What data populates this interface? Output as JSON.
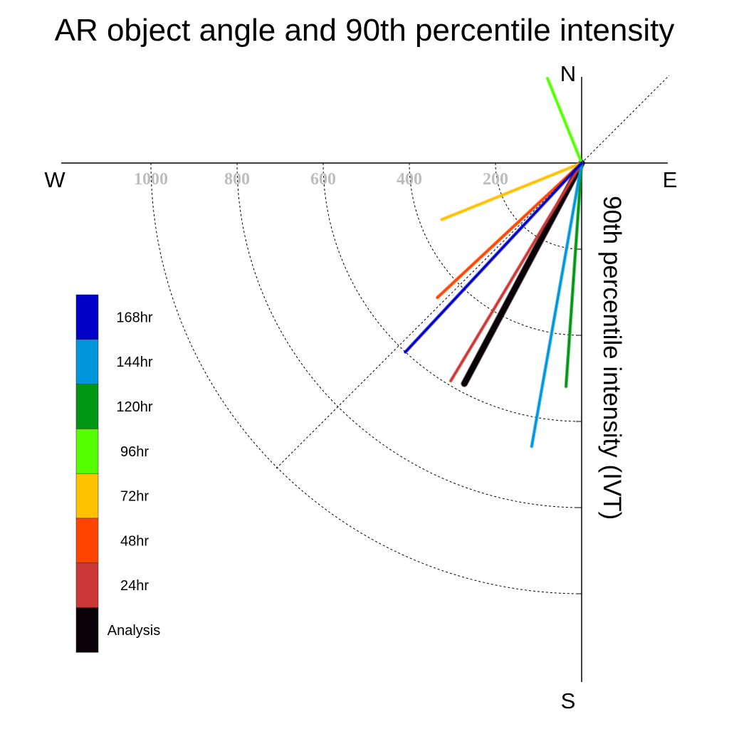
{
  "chart_data": {
    "type": "polar-vector",
    "title": "AR object angle and 90th percentile intensity",
    "axis_label": "90th percentile intensity (IVT)",
    "compass": {
      "north": "N",
      "south": "S",
      "east": "E",
      "west": "W"
    },
    "radial_ticks": [
      200,
      400,
      600,
      800,
      1000
    ],
    "radial_tick_labels": [
      "200",
      "400",
      "600",
      "800",
      "1000"
    ],
    "rmax": 1200,
    "series": [
      {
        "name": "Analysis",
        "color": "#0a0008",
        "angle_deg": 208,
        "intensity": 580
      },
      {
        "name": "24hr",
        "color": "#cc3838",
        "angle_deg": 211,
        "intensity": 590
      },
      {
        "name": "48hr",
        "color": "#ff4500",
        "angle_deg": 227,
        "intensity": 458
      },
      {
        "name": "72hr",
        "color": "#ffc200",
        "angle_deg": 248,
        "intensity": 350
      },
      {
        "name": "96hr",
        "color": "#55ff00",
        "angle_deg": 338,
        "intensity": 212
      },
      {
        "name": "120hr",
        "color": "#009614",
        "angle_deg": 184,
        "intensity": 520
      },
      {
        "name": "144hr",
        "color": "#0096dc",
        "angle_deg": 190,
        "intensity": 668
      },
      {
        "name": "168hr",
        "color": "#0000c8",
        "angle_deg": 223,
        "intensity": 600
      }
    ],
    "legend_order": [
      "168hr",
      "144hr",
      "120hr",
      "96hr",
      "72hr",
      "48hr",
      "24hr",
      "Analysis"
    ]
  }
}
